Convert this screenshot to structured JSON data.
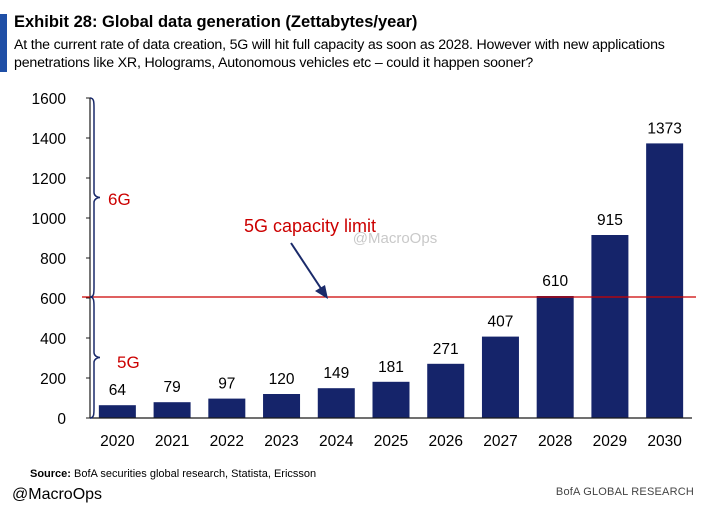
{
  "header": {
    "title": "Exhibit 28: Global data generation (Zettabytes/year)",
    "subtitle": "At the current rate of data creation, 5G will hit full capacity as soon as 2028. However with new applications penetrations like XR, Holograms, Autonomous vehicles etc – could it happen sooner?"
  },
  "chart_data": {
    "type": "bar",
    "title": "Global data generation (Zettabytes/year)",
    "xlabel": "",
    "ylabel": "",
    "categories": [
      "2020",
      "2021",
      "2022",
      "2023",
      "2024",
      "2025",
      "2026",
      "2027",
      "2028",
      "2029",
      "2030"
    ],
    "values": [
      64,
      79,
      97,
      120,
      149,
      181,
      271,
      407,
      610,
      915,
      1373
    ],
    "ylim": [
      0,
      1600
    ],
    "yticks": [
      0,
      200,
      400,
      600,
      800,
      1000,
      1200,
      1400,
      1600
    ],
    "bar_color": "#15246a",
    "grid": false,
    "legend": "none",
    "capacity_line": {
      "value": 610,
      "label": "5G capacity limit",
      "color": "#cc0000"
    },
    "axis_labels": {
      "upper": "6G",
      "lower": "5G",
      "color": "#cc0000"
    },
    "watermark": "@MacroOps"
  },
  "footer": {
    "source_label": "Source:",
    "source_text": "BofA securities global research, Statista, Ericsson",
    "handle": "@MacroOps",
    "brand": "BofA GLOBAL RESEARCH"
  }
}
